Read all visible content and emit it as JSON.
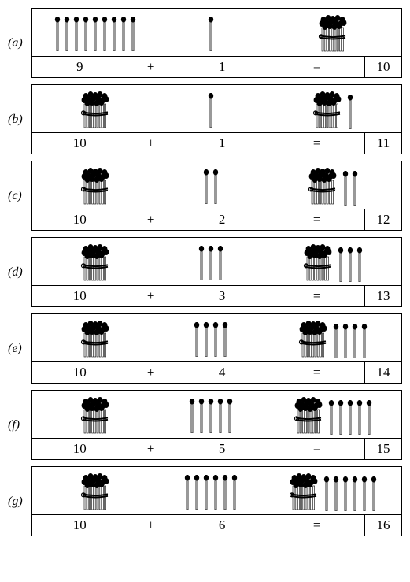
{
  "problems": [
    {
      "label": "(a)",
      "left_loose": 9,
      "left_bundle": false,
      "mid_loose": 1,
      "right_bundle": true,
      "right_loose": 0,
      "a": "9",
      "op": "+",
      "b": "1",
      "eq": "=",
      "r": "10"
    },
    {
      "label": "(b)",
      "left_loose": 0,
      "left_bundle": true,
      "mid_loose": 1,
      "right_bundle": true,
      "right_loose": 1,
      "a": "10",
      "op": "+",
      "b": "1",
      "eq": "=",
      "r": "11"
    },
    {
      "label": "(c)",
      "left_loose": 0,
      "left_bundle": true,
      "mid_loose": 2,
      "right_bundle": true,
      "right_loose": 2,
      "a": "10",
      "op": "+",
      "b": "2",
      "eq": "=",
      "r": "12"
    },
    {
      "label": "(d)",
      "left_loose": 0,
      "left_bundle": true,
      "mid_loose": 3,
      "right_bundle": true,
      "right_loose": 3,
      "a": "10",
      "op": "+",
      "b": "3",
      "eq": "=",
      "r": "13"
    },
    {
      "label": "(e)",
      "left_loose": 0,
      "left_bundle": true,
      "mid_loose": 4,
      "right_bundle": true,
      "right_loose": 4,
      "a": "10",
      "op": "+",
      "b": "4",
      "eq": "=",
      "r": "14"
    },
    {
      "label": "(f)",
      "left_loose": 0,
      "left_bundle": true,
      "mid_loose": 5,
      "right_bundle": true,
      "right_loose": 5,
      "a": "10",
      "op": "+",
      "b": "5",
      "eq": "=",
      "r": "15"
    },
    {
      "label": "(g)",
      "left_loose": 0,
      "left_bundle": true,
      "mid_loose": 6,
      "right_bundle": true,
      "right_loose": 6,
      "a": "10",
      "op": "+",
      "b": "6",
      "eq": "=",
      "r": "16"
    }
  ],
  "style": {
    "match_height": 44,
    "match_head_radius": 3.2,
    "match_stick_width": 2,
    "match_color_head": "#000000",
    "match_color_stick_fill": "#ffffff",
    "match_color_stick_stroke": "#000000",
    "bundle_width": 40,
    "bundle_height": 48,
    "loose_gap": 4,
    "font_size_label": 16,
    "font_size_eq": 17
  }
}
